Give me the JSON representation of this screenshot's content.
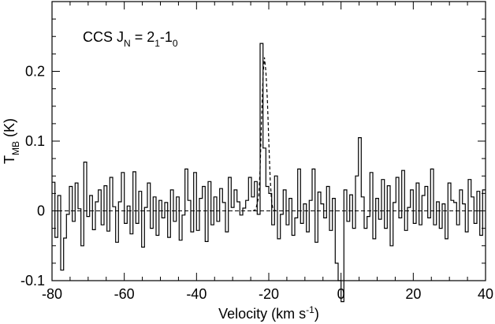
{
  "chart_data": {
    "type": "line",
    "xlabel": {
      "main": "Velocity (km s",
      "sup": "-1",
      "close": ")"
    },
    "ylabel": {
      "main": "T",
      "sub": "MB",
      "unit": " (K)"
    },
    "annotation": {
      "main": "CCS J",
      "sub1": "N",
      "mid": " = 2",
      "sub2": "1",
      "dash": "-1",
      "sub3": "0"
    },
    "xlim": [
      -80,
      40
    ],
    "ylim": [
      -0.1,
      0.3
    ],
    "xticks": [
      -80,
      -60,
      -40,
      -20,
      0,
      20,
      40
    ],
    "xtick_labels": [
      "-80",
      "-60",
      "-40",
      "-20",
      "0",
      "20",
      "40"
    ],
    "yticks": [
      -0.1,
      0,
      0.1,
      0.2
    ],
    "ytick_labels": [
      "-0.1",
      "0",
      "0.1",
      "0.2"
    ],
    "zero_line": {
      "y": 0,
      "style": "dashed"
    },
    "series": [
      {
        "style": "step",
        "x": [
          -80.0,
          -79.2,
          -78.4,
          -77.6,
          -76.8,
          -76.0,
          -75.2,
          -74.4,
          -73.6,
          -72.8,
          -72.0,
          -71.2,
          -70.4,
          -69.6,
          -68.8,
          -68.0,
          -67.2,
          -66.4,
          -65.6,
          -64.8,
          -64.0,
          -63.2,
          -62.4,
          -61.6,
          -60.8,
          -60.0,
          -59.2,
          -58.4,
          -57.6,
          -56.8,
          -56.0,
          -55.2,
          -54.4,
          -53.6,
          -52.8,
          -52.0,
          -51.2,
          -50.4,
          -49.6,
          -48.8,
          -48.0,
          -47.2,
          -46.4,
          -45.6,
          -44.8,
          -44.0,
          -43.2,
          -42.4,
          -41.6,
          -40.8,
          -40.0,
          -39.2,
          -38.4,
          -37.6,
          -36.8,
          -36.0,
          -35.2,
          -34.4,
          -33.6,
          -32.8,
          -32.0,
          -31.2,
          -30.4,
          -29.6,
          -28.8,
          -28.0,
          -27.2,
          -26.4,
          -25.6,
          -24.8,
          -24.0,
          -23.2,
          -22.4,
          -21.6,
          -20.8,
          -20.0,
          -19.2,
          -18.4,
          -17.6,
          -16.8,
          -16.0,
          -15.2,
          -14.4,
          -13.6,
          -12.8,
          -12.0,
          -11.2,
          -10.4,
          -9.6,
          -8.8,
          -8.0,
          -7.2,
          -6.4,
          -5.6,
          -4.8,
          -4.0,
          -3.2,
          -2.4,
          -1.6,
          -0.8,
          0.0,
          0.8,
          1.6,
          2.4,
          3.2,
          4.0,
          4.8,
          5.6,
          6.4,
          7.2,
          8.0,
          8.8,
          9.6,
          10.4,
          11.2,
          12.0,
          12.8,
          13.6,
          14.4,
          15.2,
          16.0,
          16.8,
          17.6,
          18.4,
          19.2,
          20.0,
          20.8,
          21.6,
          22.4,
          23.2,
          24.0,
          24.8,
          25.6,
          26.4,
          27.2,
          28.0,
          28.8,
          29.6,
          30.4,
          31.2,
          32.0,
          32.8,
          33.6,
          34.4,
          35.2,
          36.0,
          36.8,
          37.6,
          38.4,
          39.2
        ],
        "y": [
          0.041,
          -0.038,
          0.022,
          -0.085,
          -0.039,
          -0.005,
          0.035,
          -0.015,
          0.04,
          0.003,
          -0.05,
          0.07,
          -0.008,
          0.022,
          -0.027,
          0.013,
          0.03,
          -0.02,
          0.036,
          -0.029,
          0.048,
          0.006,
          -0.045,
          0.013,
          0.055,
          -0.018,
          0.007,
          -0.033,
          0.056,
          -0.018,
          0.028,
          -0.052,
          0.005,
          0.04,
          -0.025,
          0.02,
          -0.035,
          0.015,
          -0.01,
          0.012,
          -0.038,
          0.03,
          -0.015,
          0.02,
          -0.042,
          -0.006,
          0.06,
          0.015,
          -0.03,
          0.055,
          -0.028,
          0.018,
          0.035,
          -0.044,
          0.042,
          -0.02,
          0.02,
          -0.015,
          0.032,
          0.012,
          -0.03,
          0.048,
          0.005,
          0.03,
          0.013,
          -0.006,
          0.004,
          0.015,
          0.048,
          0.02,
          0.042,
          -0.005,
          0.24,
          0.09,
          0.035,
          0.025,
          -0.02,
          0.05,
          -0.04,
          -0.005,
          0.03,
          -0.02,
          0.018,
          -0.035,
          -0.01,
          0.06,
          -0.018,
          0.01,
          -0.03,
          0.015,
          0.06,
          -0.045,
          0.027,
          0.01,
          -0.01,
          0.035,
          -0.028,
          0.018,
          -0.075,
          -0.1,
          -0.13,
          0.03,
          -0.015,
          0.023,
          -0.025,
          0.05,
          0.105,
          0.02,
          -0.025,
          -0.008,
          0.055,
          -0.04,
          0.018,
          -0.012,
          0.045,
          -0.025,
          0.036,
          -0.05,
          0.012,
          0.048,
          -0.01,
          0.058,
          -0.028,
          0.005,
          0.03,
          -0.018,
          0.04,
          -0.02,
          0.022,
          0.035,
          -0.01,
          0.06,
          -0.02,
          0.013,
          -0.025,
          0.01,
          -0.04,
          0.04,
          0.015,
          0.012,
          -0.02,
          0.03,
          0.01,
          -0.03,
          0.045,
          0.02,
          -0.018,
          0.028,
          -0.035,
          0.03
        ]
      },
      {
        "style": "dashed",
        "x": [
          -24.4,
          -23.6,
          -22.8,
          -22.4,
          -22.0,
          -21.6,
          -21.2,
          -20.8,
          -20.4,
          -20.0,
          -19.6,
          -19.2,
          -18.8,
          -18.0
        ],
        "y": [
          0.0,
          0.002,
          0.02,
          0.06,
          0.13,
          0.195,
          0.22,
          0.2,
          0.16,
          0.1,
          0.045,
          0.012,
          0.002,
          0.0
        ]
      }
    ]
  }
}
